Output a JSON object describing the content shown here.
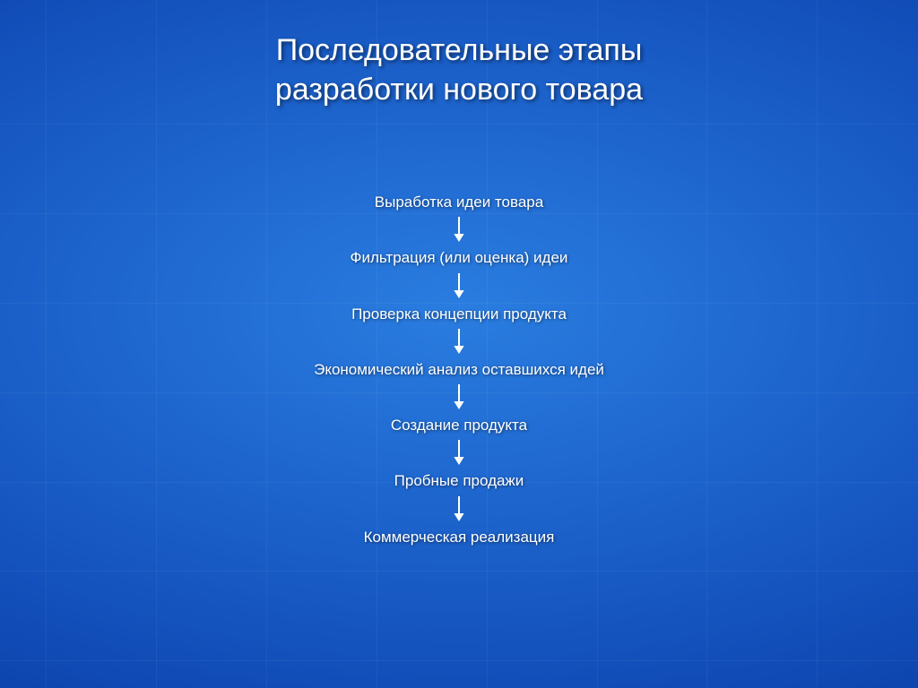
{
  "title": {
    "line1": "Последовательные этапы",
    "line2": "разработки нового товара"
  },
  "steps": [
    "Выработка идеи товара",
    "Фильтрация (или оценка) идеи",
    "Проверка концепции продукта",
    "Экономический анализ оставшихся идей",
    "Создание продукта",
    "Пробные продажи",
    "Коммерческая реализация"
  ],
  "style": {
    "type": "flowchart",
    "direction": "vertical",
    "background_gradient": [
      "#2a7de0",
      "#1f68d0",
      "#1452bd",
      "#0a3da5",
      "#052c84"
    ],
    "title_color": "#ffffff",
    "title_fontsize": 34,
    "title_shadow": "2px 2px 4px rgba(0,0,0,0.55)",
    "step_font_color": "#ffffff",
    "step_fontsize": 17,
    "step_shadow": "1px 1px 3px rgba(0,0,0,0.55)",
    "arrow_color": "#ffffff",
    "arrow_length": 28,
    "arrow_stroke": 2,
    "arrow_head": 9,
    "grid_line_color": "rgba(255,255,255,0.05)",
    "grid_h_positions_pct": [
      18,
      31,
      44,
      57,
      70,
      83,
      96
    ],
    "grid_v_positions_pct": [
      5,
      17,
      29,
      41,
      53,
      65,
      77,
      89
    ]
  }
}
